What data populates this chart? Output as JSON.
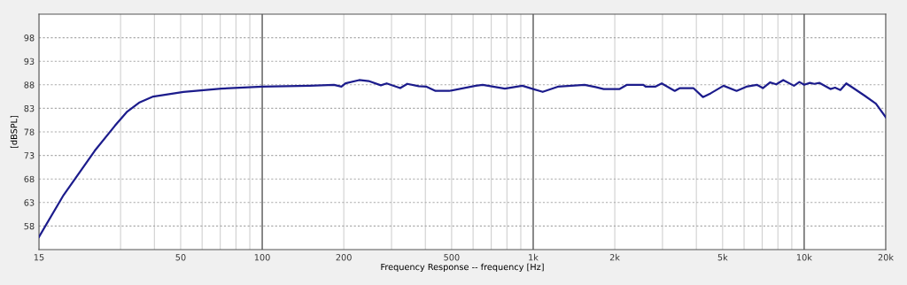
{
  "chart_data": {
    "type": "line",
    "xlabel": "Frequency Response -- frequency [Hz]",
    "ylabel": "[dBSPL]",
    "log": "x",
    "xlim": [
      15,
      20000
    ],
    "ylim": [
      53,
      103
    ],
    "xticks": [
      15,
      {
        "value": 30,
        "label": null
      },
      {
        "value": 40,
        "label": null
      },
      50,
      {
        "value": 60,
        "label": null
      },
      {
        "value": 70,
        "label": null
      },
      {
        "value": 80,
        "label": null
      },
      {
        "value": 90,
        "label": null
      },
      100,
      200,
      {
        "value": 300,
        "label": null
      },
      {
        "value": 400,
        "label": null
      },
      500,
      {
        "value": 600,
        "label": null
      },
      {
        "value": 700,
        "label": null
      },
      {
        "value": 800,
        "label": null
      },
      {
        "value": 900,
        "label": null
      },
      {
        "value": 1000,
        "label": "1k"
      },
      {
        "value": 2000,
        "label": "2k"
      },
      {
        "value": 3000,
        "label": null
      },
      {
        "value": 4000,
        "label": null
      },
      {
        "value": 5000,
        "label": "5k"
      },
      {
        "value": 6000,
        "label": null
      },
      {
        "value": 7000,
        "label": null
      },
      {
        "value": 8000,
        "label": null
      },
      {
        "value": 9000,
        "label": null
      },
      {
        "value": 10000,
        "label": "10k"
      },
      {
        "value": 20000,
        "label": "20k"
      }
    ],
    "yticks": [
      58,
      63,
      68,
      73,
      78,
      83,
      88,
      93,
      98
    ],
    "grid": true,
    "marker": "none",
    "line_style": "solid",
    "series": [
      {
        "color": "#1c1c8c",
        "x": [
          15,
          18.5,
          24.1,
          28.6,
          31.6,
          35.1,
          39.6,
          51.2,
          70.6,
          100,
          150,
          184,
          196,
          203,
          228,
          247,
          274,
          288,
          323,
          343,
          378,
          404,
          436,
          490,
          614,
          651,
          786,
          912,
          1000,
          1084,
          1233,
          1547,
          1700,
          1820,
          2085,
          2220,
          2550,
          2600,
          2820,
          2980,
          3330,
          3480,
          3900,
          4230,
          4520,
          5040,
          5630,
          6120,
          6690,
          7040,
          7480,
          7890,
          8370,
          9170,
          9600,
          10000,
          10500,
          10900,
          11400,
          12500,
          13000,
          13600,
          14300,
          15100,
          16700,
          18400,
          20000
        ],
        "values": [
          55.7,
          64.6,
          74.0,
          79.3,
          82.2,
          84.2,
          85.5,
          86.5,
          87.2,
          87.6,
          87.8,
          88.0,
          87.6,
          88.3,
          89.0,
          88.8,
          87.9,
          88.3,
          87.3,
          88.2,
          87.7,
          87.6,
          86.7,
          86.7,
          87.8,
          88.0,
          87.2,
          87.8,
          87.1,
          86.5,
          87.6,
          88.0,
          87.5,
          87.1,
          87.1,
          88.0,
          88.0,
          87.6,
          87.6,
          88.3,
          86.7,
          87.3,
          87.3,
          85.4,
          86.2,
          87.8,
          86.7,
          87.6,
          88.0,
          87.3,
          88.5,
          88.1,
          89.0,
          87.8,
          88.6,
          88.0,
          88.4,
          88.2,
          88.4,
          87.1,
          87.4,
          86.9,
          88.3,
          87.4,
          85.7,
          84.0,
          81.1
        ]
      }
    ]
  }
}
